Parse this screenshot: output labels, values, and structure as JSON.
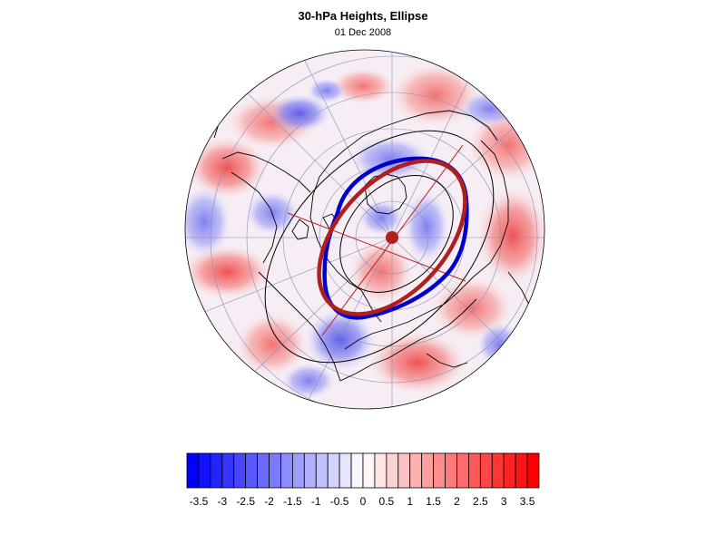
{
  "figure": {
    "title": "30-hPa Heights, Ellipse",
    "subtitle": "01 Dec 2008"
  },
  "projection": "north-polar-stereographic",
  "colorbar": {
    "colors_low": "#0000ff",
    "colors_mid": "#ffffff",
    "colors_high": "#ff0000",
    "ticks": [
      "-3.5",
      "-3",
      "-2.5",
      "-2",
      "-1.5",
      "-1",
      "-0.5",
      "0",
      "0.5",
      "1",
      "1.5",
      "2",
      "2.5",
      "3",
      "3.5"
    ],
    "range": [
      -3.75,
      3.75
    ],
    "step": 0.25
  },
  "colors": {
    "ellipse_fit": "#b01e1e",
    "contour_observed": "#0000cc",
    "axis_lines": "#c02020",
    "coastlines": "#000000",
    "graticule": "#8c8cb4"
  }
}
